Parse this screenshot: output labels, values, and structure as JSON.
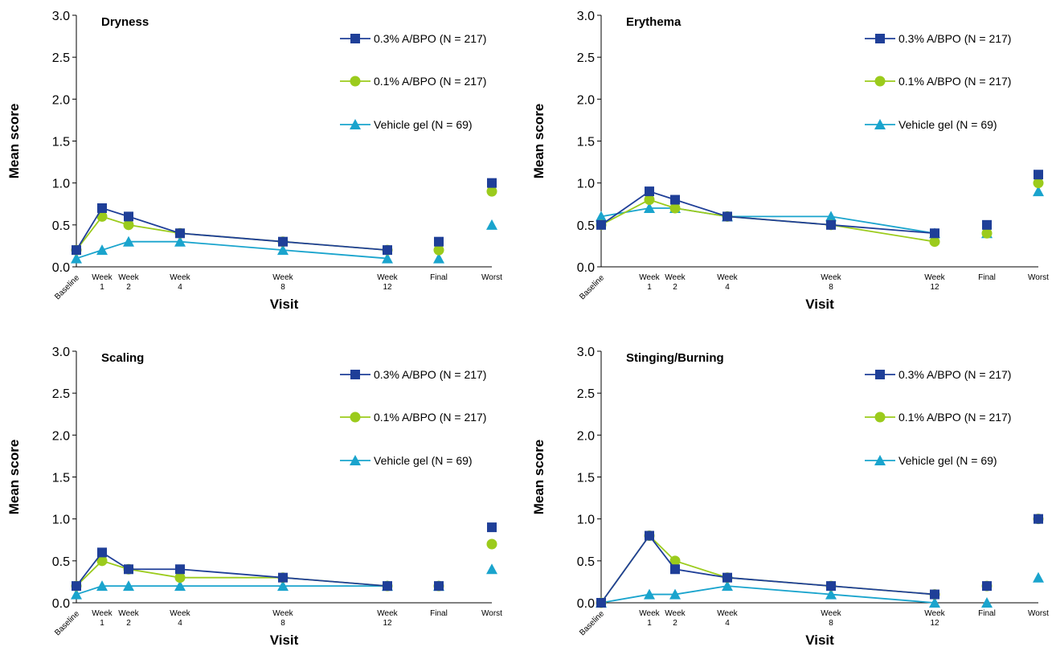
{
  "colors": {
    "series1": "#1f3f98",
    "series2": "#9bcb1c",
    "series3": "#1aa4cd"
  },
  "chart_data": [
    {
      "type": "line",
      "title": "Dryness",
      "xlabel": "Visit",
      "ylabel": "Mean score",
      "ylim": [
        0,
        3.0
      ],
      "yticks": [
        "0.0",
        "0.5",
        "1.0",
        "1.5",
        "2.0",
        "2.5",
        "3.0"
      ],
      "categories": [
        "Baseline",
        "Week 1",
        "Week 2",
        "Week 4",
        "Week 8",
        "Week 12",
        "Final",
        "Worst"
      ],
      "tick_labels": [
        [
          "Baseline"
        ],
        [
          "Week",
          "1"
        ],
        [
          "Week",
          "2"
        ],
        [
          "Week",
          "4"
        ],
        [
          "Week",
          "8"
        ],
        [
          "Week",
          "12"
        ],
        [
          "Final"
        ],
        [
          "Worst"
        ]
      ],
      "series": [
        {
          "name": "0.3% A/BPO (N = 217)",
          "marker": "square",
          "values": [
            0.2,
            0.7,
            0.6,
            0.4,
            0.3,
            0.2,
            0.3,
            1.0
          ]
        },
        {
          "name": "0.1% A/BPO (N = 217)",
          "marker": "circle",
          "values": [
            0.2,
            0.6,
            0.5,
            0.4,
            0.3,
            0.2,
            0.2,
            0.9
          ]
        },
        {
          "name": "Vehicle gel (N = 69)",
          "marker": "triangle",
          "values": [
            0.1,
            0.2,
            0.3,
            0.3,
            0.2,
            0.1,
            0.1,
            0.5
          ]
        }
      ]
    },
    {
      "type": "line",
      "title": "Erythema",
      "xlabel": "Visit",
      "ylabel": "Mean score",
      "ylim": [
        0,
        3.0
      ],
      "yticks": [
        "0.0",
        "0.5",
        "1.0",
        "1.5",
        "2.0",
        "2.5",
        "3.0"
      ],
      "categories": [
        "Baseline",
        "Week 1",
        "Week 2",
        "Week 4",
        "Week 8",
        "Week 12",
        "Final",
        "Worst"
      ],
      "tick_labels": [
        [
          "Baseline"
        ],
        [
          "Week",
          "1"
        ],
        [
          "Week",
          "2"
        ],
        [
          "Week",
          "4"
        ],
        [
          "Week",
          "8"
        ],
        [
          "Week",
          "12"
        ],
        [
          "Final"
        ],
        [
          "Worst"
        ]
      ],
      "series": [
        {
          "name": "0.3% A/BPO (N = 217)",
          "marker": "square",
          "values": [
            0.5,
            0.9,
            0.8,
            0.6,
            0.5,
            0.4,
            0.5,
            1.1
          ]
        },
        {
          "name": "0.1% A/BPO (N = 217)",
          "marker": "circle",
          "values": [
            0.5,
            0.8,
            0.7,
            0.6,
            0.5,
            0.3,
            0.4,
            1.0
          ]
        },
        {
          "name": "Vehicle gel (N = 69)",
          "marker": "triangle",
          "values": [
            0.6,
            0.7,
            0.7,
            0.6,
            0.6,
            0.4,
            0.4,
            0.9
          ]
        }
      ]
    },
    {
      "type": "line",
      "title": "Scaling",
      "xlabel": "Visit",
      "ylabel": "Mean score",
      "ylim": [
        0,
        3.0
      ],
      "yticks": [
        "0.0",
        "0.5",
        "1.0",
        "1.5",
        "2.0",
        "2.5",
        "3.0"
      ],
      "categories": [
        "Baseline",
        "Week 1",
        "Week 2",
        "Week 4",
        "Week 8",
        "Week 12",
        "Final",
        "Worst"
      ],
      "tick_labels": [
        [
          "Baseline"
        ],
        [
          "Week",
          "1"
        ],
        [
          "Week",
          "2"
        ],
        [
          "Week",
          "4"
        ],
        [
          "Week",
          "8"
        ],
        [
          "Week",
          "12"
        ],
        [
          "Final"
        ],
        [
          "Worst"
        ]
      ],
      "series": [
        {
          "name": "0.3% A/BPO (N = 217)",
          "marker": "square",
          "values": [
            0.2,
            0.6,
            0.4,
            0.4,
            0.3,
            0.2,
            0.2,
            0.9
          ]
        },
        {
          "name": "0.1% A/BPO (N = 217)",
          "marker": "circle",
          "values": [
            0.2,
            0.5,
            0.4,
            0.3,
            0.3,
            0.2,
            0.2,
            0.7
          ]
        },
        {
          "name": "Vehicle gel (N = 69)",
          "marker": "triangle",
          "values": [
            0.1,
            0.2,
            0.2,
            0.2,
            0.2,
            0.2,
            0.2,
            0.4
          ]
        }
      ]
    },
    {
      "type": "line",
      "title": "Stinging/Burning",
      "xlabel": "Visit",
      "ylabel": "Mean score",
      "ylim": [
        0,
        3.0
      ],
      "yticks": [
        "0.0",
        "0.5",
        "1.0",
        "1.5",
        "2.0",
        "2.5",
        "3.0"
      ],
      "categories": [
        "Baseline",
        "Week 1",
        "Week 2",
        "Week 4",
        "Week 8",
        "Week 12",
        "Final",
        "Worst"
      ],
      "tick_labels": [
        [
          "Baseline"
        ],
        [
          "Week",
          "1"
        ],
        [
          "Week",
          "2"
        ],
        [
          "Week",
          "4"
        ],
        [
          "Week",
          "8"
        ],
        [
          "Week",
          "12"
        ],
        [
          "Final"
        ],
        [
          "Worst"
        ]
      ],
      "series": [
        {
          "name": "0.3% A/BPO (N = 217)",
          "marker": "square",
          "values": [
            0.0,
            0.8,
            0.4,
            0.3,
            0.2,
            0.1,
            0.2,
            1.0
          ]
        },
        {
          "name": "0.1% A/BPO (N = 217)",
          "marker": "circle",
          "values": [
            0.0,
            0.8,
            0.5,
            0.3,
            0.2,
            0.1,
            0.2,
            1.0
          ]
        },
        {
          "name": "Vehicle gel (N = 69)",
          "marker": "triangle",
          "values": [
            0.0,
            0.1,
            0.1,
            0.2,
            0.1,
            0.0,
            0.0,
            0.3
          ]
        }
      ]
    }
  ]
}
